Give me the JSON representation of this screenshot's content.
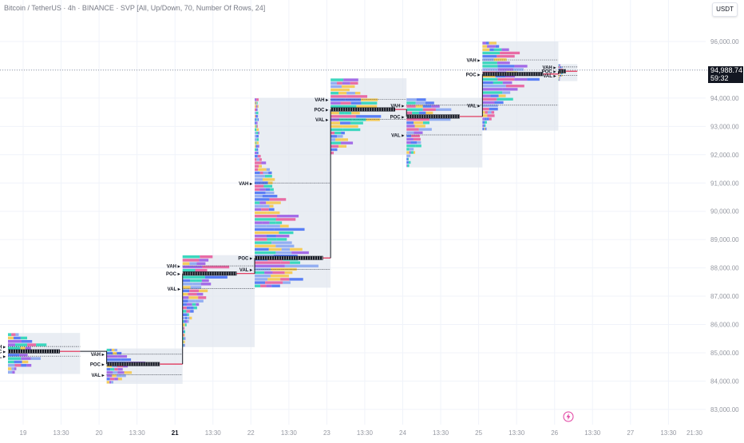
{
  "header": {
    "title": "Bitcoin / TetherUS · 4h · BINANCE · SVP [All, Up/Down, 70, Number Of Rows, 24]",
    "currency_button": "USDT"
  },
  "price_scale": {
    "last_price": "94,988.74",
    "countdown": "59:32"
  },
  "colors": {
    "background": "#ffffff",
    "grid": "#f0f3fa",
    "box_fill": "#dfe6ee",
    "profile_blue": "#4a72f5",
    "profile_teal": "#29d4b8",
    "profile_purple": "#9b5de5",
    "profile_pink": "#e85d9c",
    "profile_yellow": "#f5c84c",
    "profile_lightblue": "#8aa6f2",
    "poc_line": "#131722",
    "last_price_line": "#787b86",
    "axis_text": "#9598a1"
  },
  "icons": {
    "alert": "lightning-icon"
  },
  "chart_data": {
    "type": "volume_profile",
    "title": "Bitcoin / TetherUS · 4h · BINANCE · SVP [All, Up/Down, 70, Number Of Rows, 24]",
    "xlabel": "",
    "ylabel": "",
    "ylim": [
      82800,
      96700
    ],
    "grid": true,
    "y_ticks": [
      96000,
      95000,
      94000,
      93000,
      92000,
      91000,
      90000,
      89000,
      88000,
      87000,
      86000,
      85000,
      84000,
      83000
    ],
    "y_tick_labels": [
      "96,000.00",
      "95,000.00",
      "94,000.00",
      "93,000.00",
      "92,000.00",
      "91,000.00",
      "90,000.00",
      "89,000.00",
      "88,000.00",
      "87,000.00",
      "86,000.00",
      "85,000.00",
      "84,000.00",
      "83,000.00"
    ],
    "x_tick_labels": [
      "19",
      "13:30",
      "20",
      "13:30",
      "21",
      "13:30",
      "22",
      "13:30",
      "23",
      "13:30",
      "24",
      "13:30",
      "25",
      "13:30",
      "26",
      "13:30",
      "27",
      "13:30",
      "21:30"
    ],
    "x_tick_bold": [
      "21"
    ],
    "last_price": 94988.74,
    "sessions": [
      {
        "label": "19",
        "start": 18.8,
        "end": 19.75,
        "high": 85.7,
        "low": 84.25,
        "poc": 85.05,
        "vah": 85.22,
        "val": 84.88,
        "profile_width": 0.72
      },
      {
        "label": "20",
        "start": 20.1,
        "end": 21.1,
        "high": 85.15,
        "low": 83.9,
        "poc": 84.6,
        "vah": 84.95,
        "val": 84.22,
        "profile_width": 0.7
      },
      {
        "label": "21",
        "start": 21.1,
        "end": 22.05,
        "high": 88.45,
        "low": 85.2,
        "poc": 87.8,
        "vah": 88.07,
        "val": 87.27,
        "profile_width": 0.75
      },
      {
        "label": "22",
        "start": 22.05,
        "end": 23.05,
        "high": 94.0,
        "low": 87.3,
        "poc": 88.35,
        "vah": 91.0,
        "val": 87.95,
        "profile_width": 0.9
      },
      {
        "label": "23",
        "start": 23.05,
        "end": 24.05,
        "high": 94.7,
        "low": 92.0,
        "poc": 93.6,
        "vah": 93.95,
        "val": 93.25,
        "profile_width": 0.85
      },
      {
        "label": "24",
        "start": 24.05,
        "end": 25.05,
        "high": 94.0,
        "low": 91.55,
        "poc": 93.35,
        "vah": 93.75,
        "val": 92.7,
        "profile_width": 0.7
      },
      {
        "label": "25",
        "start": 25.05,
        "end": 26.05,
        "high": 96.0,
        "low": 92.85,
        "poc": 94.85,
        "vah": 95.35,
        "val": 93.75,
        "profile_width": 0.8
      },
      {
        "label": "26",
        "start": 26.05,
        "end": 26.3,
        "high": 95.2,
        "low": 94.6,
        "poc": 94.95,
        "vah": 95.1,
        "val": 94.8,
        "profile_width": 0.4
      }
    ],
    "value_area_labels": [
      "VAH",
      "POC",
      "VAL"
    ]
  }
}
